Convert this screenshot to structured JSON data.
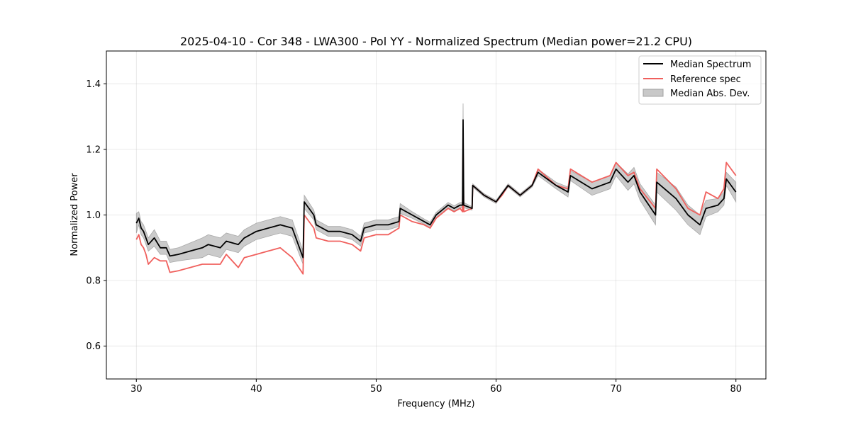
{
  "chart_data": {
    "type": "line",
    "title": "2025-04-10 - Cor 348 - LWA300 - Pol YY - Normalized Spectrum (Median power=21.2 CPU)",
    "xlabel": "Frequency (MHz)",
    "ylabel": "Normalized Power",
    "xlim": [
      27.5,
      82.5
    ],
    "ylim": [
      0.5,
      1.5
    ],
    "xticks": [
      30,
      40,
      50,
      60,
      70,
      80
    ],
    "yticks": [
      0.6,
      0.8,
      1.0,
      1.2,
      1.4
    ],
    "grid": true,
    "legend_position": "top-right",
    "legend": [
      "Median Spectrum",
      "Reference spec",
      "Median Abs. Dev."
    ],
    "colors": {
      "median": "#000000",
      "reference": "#f0605d",
      "mad": "#c8c8c8"
    },
    "series": [
      {
        "name": "Median Spectrum",
        "x": [
          30.0,
          30.2,
          30.4,
          30.6,
          30.8,
          31.0,
          31.5,
          32.0,
          32.5,
          32.8,
          33.5,
          34.5,
          35.5,
          36.0,
          37.0,
          37.5,
          38.5,
          39.0,
          40.0,
          41.0,
          42.0,
          43.0,
          43.9,
          44.0,
          44.8,
          45.0,
          46.0,
          47.0,
          48.0,
          48.7,
          49.0,
          50.0,
          51.0,
          51.9,
          52.0,
          53.0,
          54.0,
          54.5,
          55.0,
          56.0,
          56.5,
          57.0,
          57.2,
          57.25,
          57.3,
          58.0,
          58.05,
          59.0,
          60.0,
          60.5,
          61.0,
          62.0,
          63.0,
          63.5,
          65.0,
          66.0,
          66.2,
          68.0,
          69.5,
          70.0,
          71.0,
          71.5,
          72.0,
          73.3,
          73.4,
          75.0,
          76.0,
          77.0,
          77.5,
          78.5,
          79.0,
          79.2,
          80.0
        ],
        "y": [
          0.975,
          0.99,
          0.96,
          0.95,
          0.93,
          0.91,
          0.93,
          0.9,
          0.9,
          0.875,
          0.88,
          0.89,
          0.9,
          0.91,
          0.9,
          0.92,
          0.91,
          0.93,
          0.95,
          0.96,
          0.97,
          0.96,
          0.87,
          1.04,
          1.0,
          0.97,
          0.95,
          0.95,
          0.94,
          0.92,
          0.96,
          0.97,
          0.97,
          0.98,
          1.02,
          1.0,
          0.98,
          0.97,
          1.0,
          1.03,
          1.02,
          1.03,
          1.03,
          1.29,
          1.03,
          1.02,
          1.09,
          1.06,
          1.04,
          1.065,
          1.09,
          1.06,
          1.09,
          1.13,
          1.09,
          1.07,
          1.12,
          1.08,
          1.1,
          1.14,
          1.1,
          1.12,
          1.07,
          1.0,
          1.1,
          1.05,
          1.0,
          0.97,
          1.02,
          1.03,
          1.05,
          1.11,
          1.07
        ]
      },
      {
        "name": "Reference spec",
        "x": [
          30.0,
          30.2,
          30.4,
          30.6,
          30.8,
          31.0,
          31.5,
          32.0,
          32.5,
          32.8,
          33.5,
          34.5,
          35.5,
          36.0,
          37.0,
          37.5,
          38.5,
          39.0,
          40.0,
          41.0,
          42.0,
          43.0,
          43.9,
          44.0,
          44.8,
          45.0,
          46.0,
          47.0,
          48.0,
          48.7,
          49.0,
          50.0,
          51.0,
          51.9,
          52.0,
          53.0,
          54.0,
          54.5,
          55.0,
          56.0,
          56.5,
          57.0,
          57.2,
          57.25,
          57.3,
          58.0,
          58.05,
          59.0,
          60.0,
          60.5,
          61.0,
          62.0,
          63.0,
          63.5,
          65.0,
          66.0,
          66.2,
          68.0,
          69.5,
          70.0,
          71.0,
          71.5,
          72.0,
          73.3,
          73.4,
          75.0,
          76.0,
          77.0,
          77.5,
          78.5,
          79.0,
          79.2,
          80.0
        ],
        "y": [
          0.925,
          0.94,
          0.91,
          0.9,
          0.88,
          0.85,
          0.87,
          0.86,
          0.86,
          0.825,
          0.83,
          0.84,
          0.85,
          0.85,
          0.85,
          0.88,
          0.84,
          0.87,
          0.88,
          0.89,
          0.9,
          0.87,
          0.82,
          1.0,
          0.96,
          0.93,
          0.92,
          0.92,
          0.91,
          0.89,
          0.93,
          0.94,
          0.94,
          0.96,
          1.0,
          0.98,
          0.97,
          0.96,
          0.99,
          1.02,
          1.01,
          1.02,
          1.01,
          1.22,
          1.01,
          1.02,
          1.09,
          1.06,
          1.04,
          1.06,
          1.09,
          1.06,
          1.09,
          1.14,
          1.09,
          1.08,
          1.14,
          1.1,
          1.12,
          1.16,
          1.12,
          1.13,
          1.08,
          1.02,
          1.14,
          1.08,
          1.02,
          1.0,
          1.07,
          1.05,
          1.08,
          1.16,
          1.12
        ]
      }
    ],
    "mad_band": {
      "name": "Median Abs. Dev.",
      "half_width": [
        0.03,
        0.02,
        0.02,
        0.02,
        0.02,
        0.02,
        0.025,
        0.02,
        0.02,
        0.02,
        0.02,
        0.025,
        0.03,
        0.03,
        0.03,
        0.025,
        0.025,
        0.025,
        0.025,
        0.025,
        0.025,
        0.025,
        0.02,
        0.02,
        0.015,
        0.015,
        0.015,
        0.015,
        0.015,
        0.015,
        0.015,
        0.015,
        0.015,
        0.015,
        0.015,
        0.01,
        0.008,
        0.008,
        0.008,
        0.008,
        0.008,
        0.008,
        0.008,
        0.05,
        0.008,
        0.005,
        0.005,
        0.005,
        0.005,
        0.005,
        0.005,
        0.005,
        0.005,
        0.01,
        0.01,
        0.015,
        0.015,
        0.02,
        0.02,
        0.02,
        0.025,
        0.025,
        0.025,
        0.03,
        0.03,
        0.035,
        0.03,
        0.03,
        0.025,
        0.02,
        0.02,
        0.02,
        0.03
      ]
    }
  }
}
